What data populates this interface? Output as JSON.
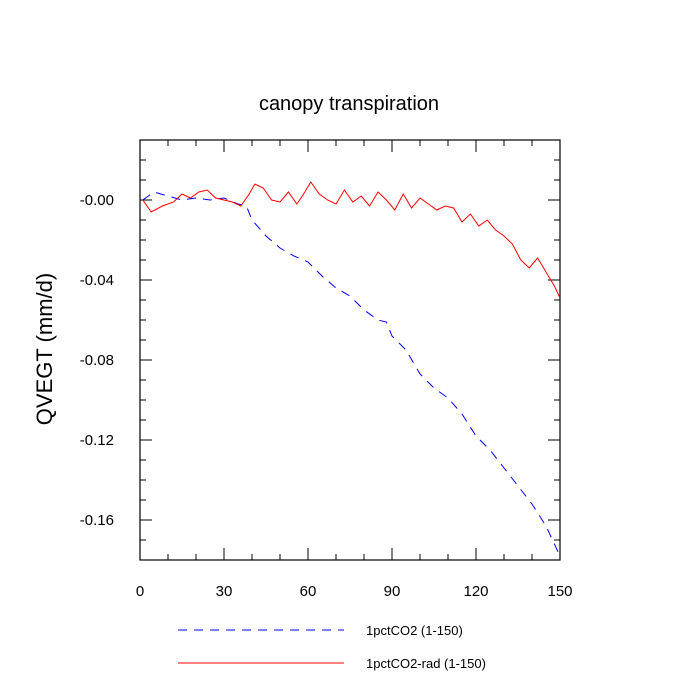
{
  "chart_data": {
    "type": "line",
    "title": "canopy transpiration",
    "xlabel": "",
    "ylabel": "QVEGT  (mm/d)",
    "xlim": [
      0,
      150
    ],
    "ylim": [
      -0.18,
      0.03
    ],
    "x_ticks": [
      "0",
      "30",
      "60",
      "90",
      "120",
      "150"
    ],
    "y_ticks": [
      "-0.00",
      "-0.04",
      "-0.08",
      "-0.12",
      "-0.16"
    ],
    "y_tick_values": [
      0.0,
      -0.04,
      -0.08,
      -0.12,
      -0.16
    ],
    "x_tick_values": [
      0,
      30,
      60,
      90,
      120,
      150
    ],
    "legend_position": "bottom",
    "series": [
      {
        "name": "1pctCO2 (1-150)",
        "color": "#0000ff",
        "style": "dashed",
        "x": [
          1,
          5,
          10,
          15,
          20,
          25,
          30,
          35,
          38,
          40,
          45,
          50,
          55,
          60,
          65,
          70,
          75,
          80,
          85,
          88,
          90,
          95,
          100,
          105,
          110,
          115,
          120,
          125,
          130,
          135,
          140,
          145,
          150
        ],
        "values": [
          0.0,
          0.004,
          0.002,
          0.0,
          0.001,
          0.0,
          0.001,
          -0.002,
          -0.003,
          -0.01,
          -0.018,
          -0.024,
          -0.028,
          -0.031,
          -0.038,
          -0.044,
          -0.048,
          -0.055,
          -0.06,
          -0.061,
          -0.068,
          -0.075,
          -0.087,
          -0.094,
          -0.099,
          -0.107,
          -0.118,
          -0.125,
          -0.134,
          -0.143,
          -0.152,
          -0.163,
          -0.178
        ]
      },
      {
        "name": "1pctCO2-rad (1-150)",
        "color": "#ff0000",
        "style": "solid",
        "x": [
          1,
          4,
          8,
          12,
          15,
          18,
          21,
          24,
          27,
          30,
          33,
          36,
          39,
          41,
          44,
          47,
          50,
          53,
          56,
          58,
          61,
          64,
          67,
          70,
          73,
          76,
          79,
          82,
          85,
          88,
          91,
          94,
          97,
          100,
          103,
          106,
          109,
          112,
          115,
          118,
          121,
          124,
          127,
          130,
          133,
          136,
          139,
          142,
          145,
          148,
          150
        ],
        "values": [
          0.0,
          -0.006,
          -0.003,
          -0.001,
          0.003,
          0.001,
          0.004,
          0.005,
          0.001,
          0.0,
          -0.001,
          -0.003,
          0.003,
          0.008,
          0.006,
          0.0,
          -0.001,
          0.004,
          -0.002,
          0.002,
          0.009,
          0.003,
          0.0,
          -0.002,
          0.005,
          -0.001,
          0.002,
          -0.003,
          0.004,
          0.0,
          -0.005,
          0.003,
          -0.004,
          0.001,
          -0.002,
          -0.005,
          -0.003,
          -0.004,
          -0.011,
          -0.007,
          -0.013,
          -0.01,
          -0.015,
          -0.018,
          -0.022,
          -0.03,
          -0.034,
          -0.029,
          -0.036,
          -0.043,
          -0.049
        ]
      }
    ]
  }
}
